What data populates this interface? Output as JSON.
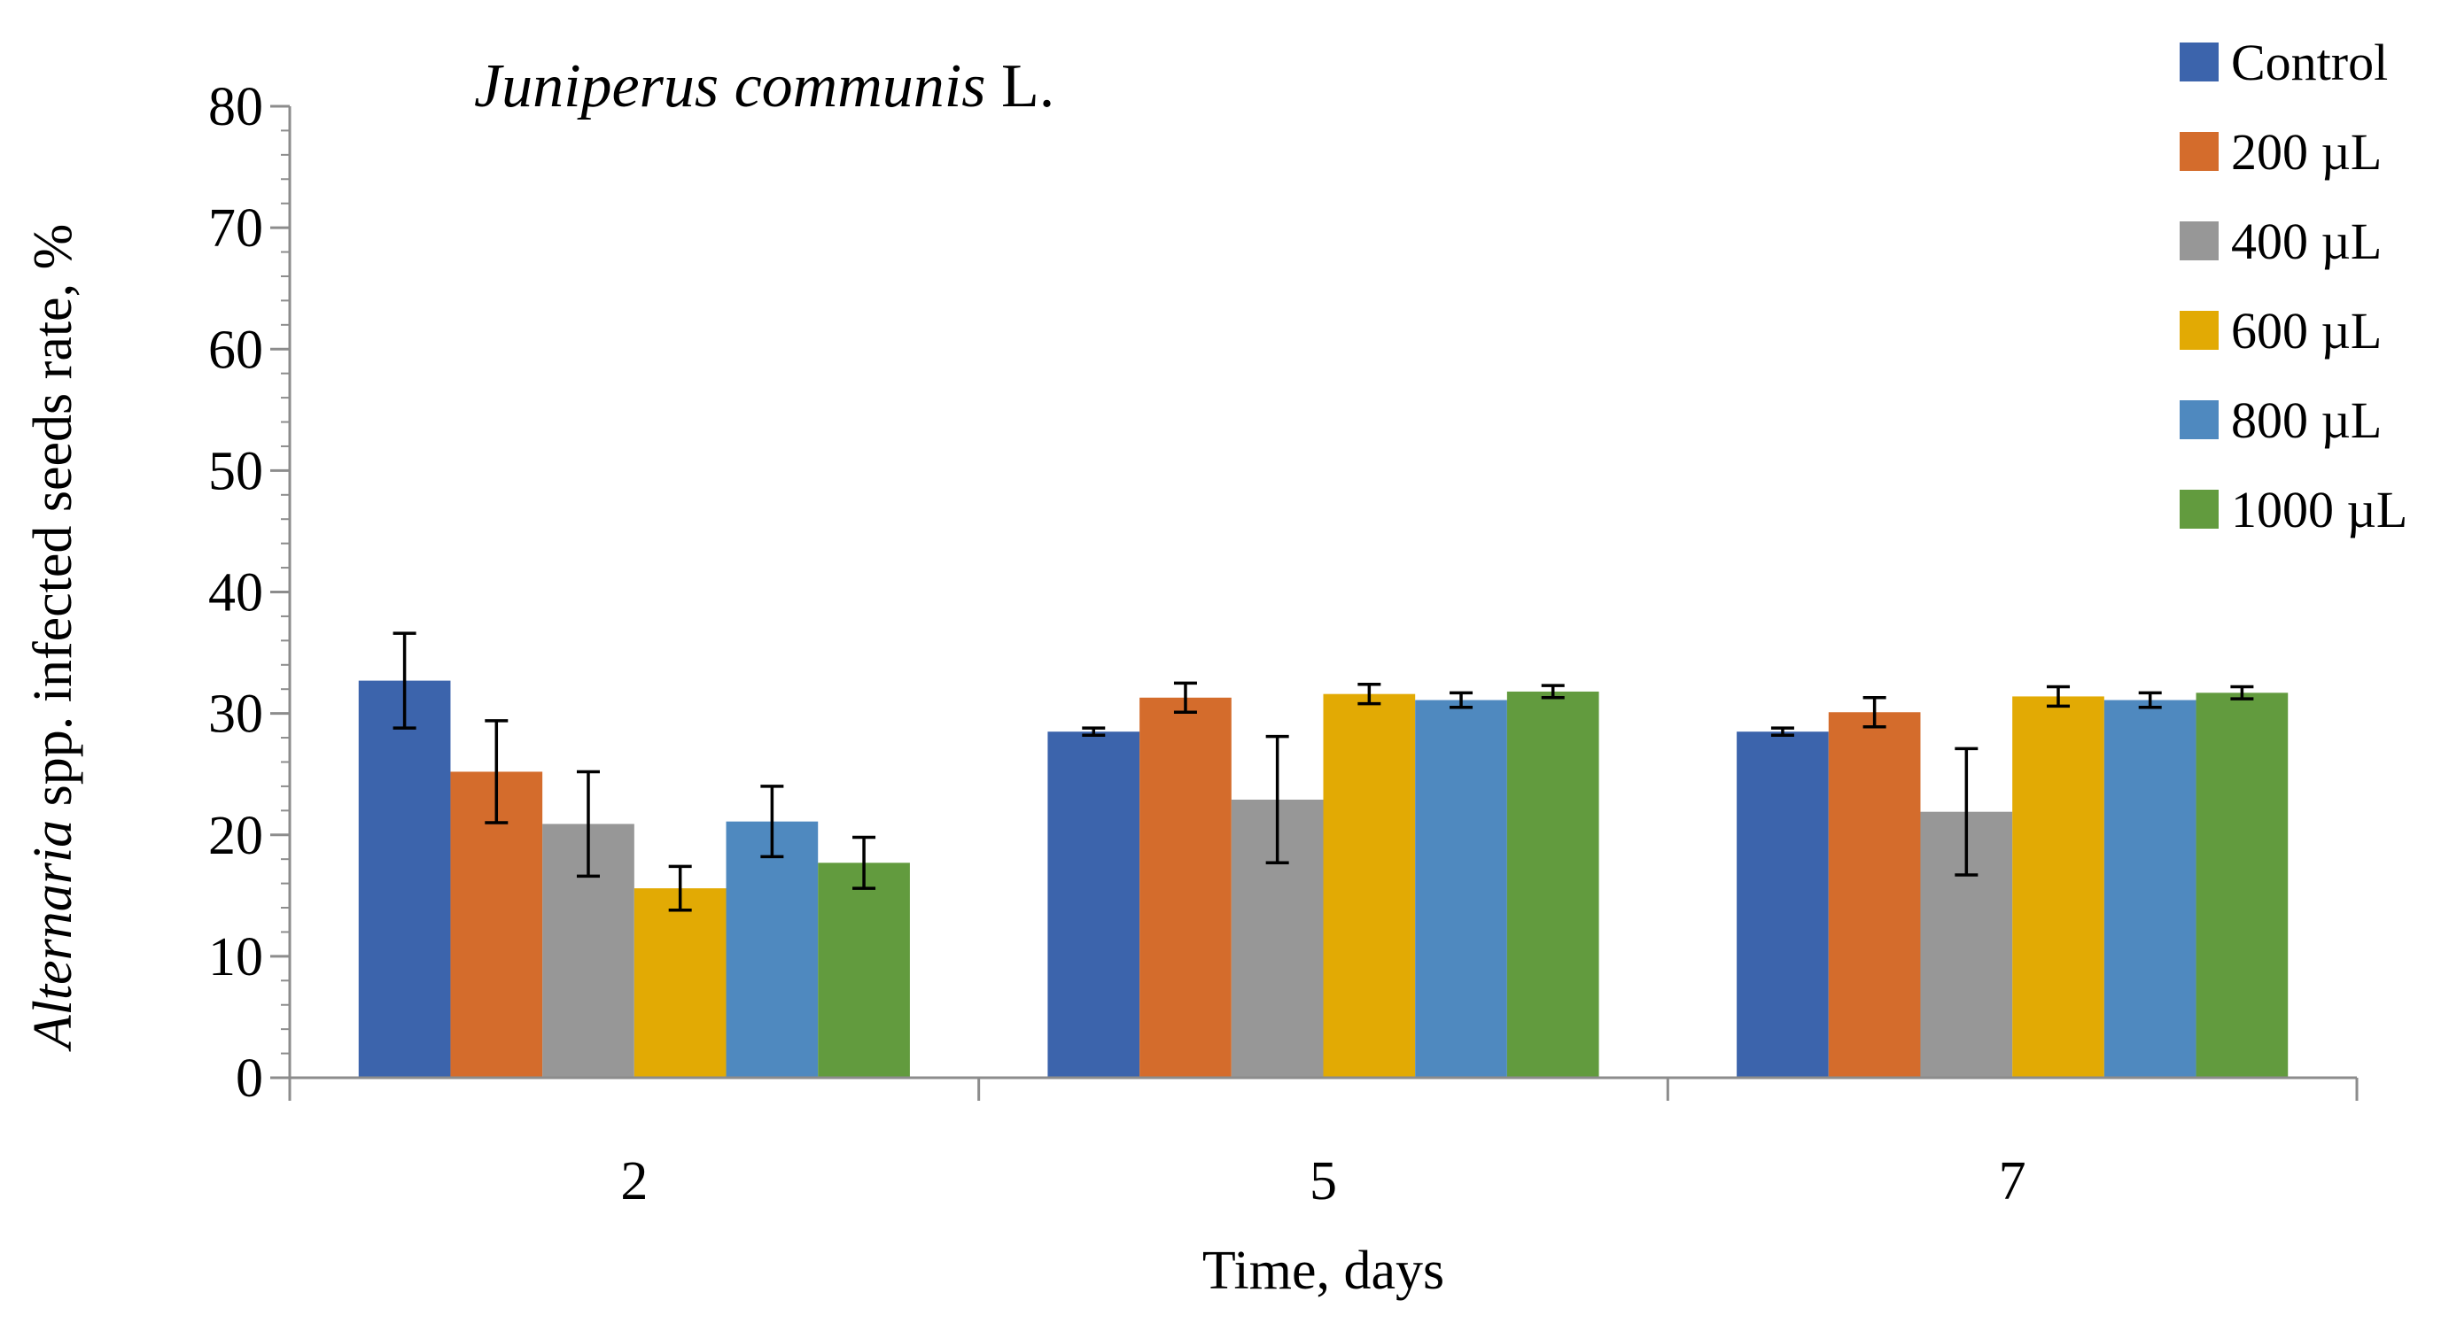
{
  "chart_data": {
    "type": "bar",
    "title_italic": "Juniperus communis",
    "title_rest": " L.",
    "xlabel": "Time, days",
    "ylabel_italic": "Alternaria",
    "ylabel_rest": " spp. infected seeds rate, %",
    "ylim": [
      0,
      80
    ],
    "yticks": [
      0,
      10,
      20,
      30,
      40,
      50,
      60,
      70,
      80
    ],
    "categories": [
      "2",
      "5",
      "7"
    ],
    "legend_position": "top-right",
    "error_bars": true,
    "series": [
      {
        "name": "Control",
        "color": "#3c64ac",
        "values": [
          32.7,
          28.5,
          28.5
        ],
        "errors": [
          3.9,
          0.3,
          0.3
        ]
      },
      {
        "name": "200 µL",
        "color": "#d46c2c",
        "values": [
          25.2,
          31.3,
          30.1
        ],
        "errors": [
          4.2,
          1.2,
          1.2
        ]
      },
      {
        "name": "400 µL",
        "color": "#979797",
        "values": [
          20.9,
          22.9,
          21.9
        ],
        "errors": [
          4.3,
          5.2,
          5.2
        ]
      },
      {
        "name": "600 µL",
        "color": "#e2aa04",
        "values": [
          15.6,
          31.6,
          31.4
        ],
        "errors": [
          1.8,
          0.8,
          0.8
        ]
      },
      {
        "name": "800 µL",
        "color": "#4f89bf",
        "values": [
          21.1,
          31.1,
          31.1
        ],
        "errors": [
          2.9,
          0.6,
          0.6
        ]
      },
      {
        "name": "1000 µL",
        "color": "#629b3e",
        "values": [
          17.7,
          31.8,
          31.7
        ],
        "errors": [
          2.1,
          0.5,
          0.5
        ]
      }
    ]
  }
}
